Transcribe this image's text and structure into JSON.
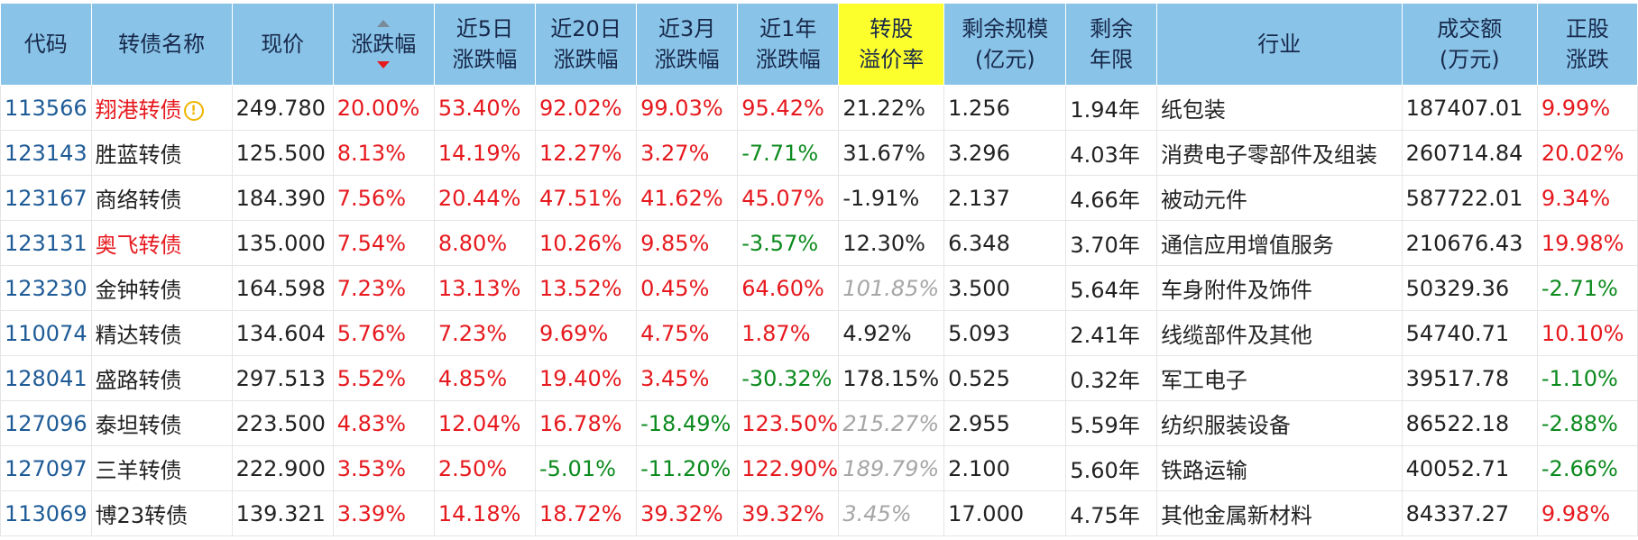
{
  "headers": [
    {
      "key": "code",
      "label": "代码"
    },
    {
      "key": "name",
      "label": "转债名称"
    },
    {
      "key": "price",
      "label": "现价"
    },
    {
      "key": "chg",
      "label": "涨跌幅"
    },
    {
      "key": "chg5d",
      "label": "近5日\n涨跌幅"
    },
    {
      "key": "chg20d",
      "label": "近20日\n涨跌幅"
    },
    {
      "key": "chg3m",
      "label": "近3月\n涨跌幅"
    },
    {
      "key": "chg1y",
      "label": "近1年\n涨跌幅"
    },
    {
      "key": "premium",
      "label": "转股\n溢价率"
    },
    {
      "key": "size",
      "label": "剩余规模\n(亿元)"
    },
    {
      "key": "years",
      "label": "剩余\n年限"
    },
    {
      "key": "industry",
      "label": "行业"
    },
    {
      "key": "volume",
      "label": "成交额\n(万元)"
    },
    {
      "key": "stock_chg",
      "label": "正股\n涨跌"
    }
  ],
  "rows": [
    {
      "code": "113566",
      "name": "翔港转债",
      "price": "249.780",
      "chg": "20.00%",
      "chg5d": "53.40%",
      "chg20d": "92.02%",
      "chg3m": "99.03%",
      "chg1y": "95.42%",
      "premium": "21.22%",
      "size": "1.256",
      "years": "1.94年",
      "industry": "纸包装",
      "volume": "187407.01",
      "stock_chg": "9.99%"
    },
    {
      "code": "123143",
      "name": "胜蓝转债",
      "price": "125.500",
      "chg": "8.13%",
      "chg5d": "14.19%",
      "chg20d": "12.27%",
      "chg3m": "3.27%",
      "chg1y": "-7.71%",
      "premium": "31.67%",
      "size": "3.296",
      "years": "4.03年",
      "industry": "消费电子零部件及组装",
      "volume": "260714.84",
      "stock_chg": "20.02%"
    },
    {
      "code": "123167",
      "name": "商络转债",
      "price": "184.390",
      "chg": "7.56%",
      "chg5d": "20.44%",
      "chg20d": "47.51%",
      "chg3m": "41.62%",
      "chg1y": "45.07%",
      "premium": "-1.91%",
      "size": "2.137",
      "years": "4.66年",
      "industry": "被动元件",
      "volume": "587722.01",
      "stock_chg": "9.34%"
    },
    {
      "code": "123131",
      "name": "奥飞转债",
      "price": "135.000",
      "chg": "7.54%",
      "chg5d": "8.80%",
      "chg20d": "10.26%",
      "chg3m": "9.85%",
      "chg1y": "-3.57%",
      "premium": "12.30%",
      "size": "6.348",
      "years": "3.70年",
      "industry": "通信应用增值服务",
      "volume": "210676.43",
      "stock_chg": "19.98%"
    },
    {
      "code": "123230",
      "name": "金钟转债",
      "price": "164.598",
      "chg": "7.23%",
      "chg5d": "13.13%",
      "chg20d": "13.52%",
      "chg3m": "0.45%",
      "chg1y": "64.60%",
      "premium": "101.85%",
      "size": "3.500",
      "years": "5.64年",
      "industry": "车身附件及饰件",
      "volume": "50329.36",
      "stock_chg": "-2.71%"
    },
    {
      "code": "110074",
      "name": "精达转债",
      "price": "134.604",
      "chg": "5.76%",
      "chg5d": "7.23%",
      "chg20d": "9.69%",
      "chg3m": "4.75%",
      "chg1y": "1.87%",
      "premium": "4.92%",
      "size": "5.093",
      "years": "2.41年",
      "industry": "线缆部件及其他",
      "volume": "54740.71",
      "stock_chg": "10.10%"
    },
    {
      "code": "128041",
      "name": "盛路转债",
      "price": "297.513",
      "chg": "5.52%",
      "chg5d": "4.85%",
      "chg20d": "19.40%",
      "chg3m": "3.45%",
      "chg1y": "-30.32%",
      "premium": "178.15%",
      "size": "0.525",
      "years": "0.32年",
      "industry": "军工电子",
      "volume": "39517.78",
      "stock_chg": "-1.10%"
    },
    {
      "code": "127096",
      "name": "泰坦转债",
      "price": "223.500",
      "chg": "4.83%",
      "chg5d": "12.04%",
      "chg20d": "16.78%",
      "chg3m": "-18.49%",
      "chg1y": "123.50%",
      "premium": "215.27%",
      "size": "2.955",
      "years": "5.59年",
      "industry": "纺织服装设备",
      "volume": "86522.18",
      "stock_chg": "-2.88%"
    },
    {
      "code": "127097",
      "name": "三羊转债",
      "price": "222.900",
      "chg": "3.53%",
      "chg5d": "2.50%",
      "chg20d": "-5.01%",
      "chg3m": "-11.20%",
      "chg1y": "122.90%",
      "premium": "189.79%",
      "size": "2.100",
      "years": "5.60年",
      "industry": "铁路运输",
      "volume": "40052.71",
      "stock_chg": "-2.66%"
    },
    {
      "code": "113069",
      "name": "博23转债",
      "price": "139.321",
      "chg": "3.39%",
      "chg5d": "14.18%",
      "chg20d": "18.72%",
      "chg3m": "39.32%",
      "chg1y": "39.32%",
      "premium": "3.45%",
      "size": "17.000",
      "years": "4.75年",
      "industry": "其他金属新材料",
      "volume": "84337.27",
      "stock_chg": "9.98%"
    }
  ],
  "styles": {
    "red_names": [
      "113566",
      "123131"
    ],
    "warn_codes": [
      "113566"
    ],
    "italic_premium": [
      "123230",
      "127096",
      "127097",
      "113069"
    ],
    "up_color": "#e6191e",
    "down_color": "#0c8a1e",
    "code_color": "#1e5b96",
    "header_bg": "#89c4e8",
    "highlight_header_bg": "#fcff2c",
    "highlight_column": "premium",
    "sort_column": "chg",
    "sort_direction": "desc"
  }
}
